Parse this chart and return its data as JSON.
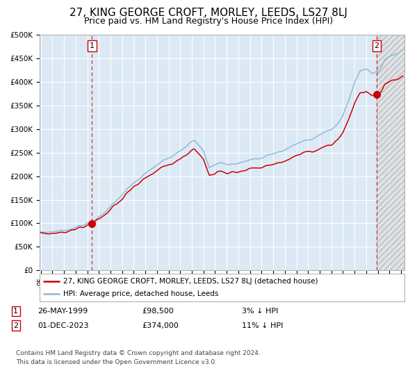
{
  "title": "27, KING GEORGE CROFT, MORLEY, LEEDS, LS27 8LJ",
  "subtitle": "Price paid vs. HM Land Registry's House Price Index (HPI)",
  "title_fontsize": 11,
  "subtitle_fontsize": 9,
  "background_color": "#ffffff",
  "plot_bg_color": "#dce9f5",
  "hpi_color": "#89b8d8",
  "price_color": "#cc0000",
  "ylim": [
    0,
    500000
  ],
  "yticks": [
    0,
    50000,
    100000,
    150000,
    200000,
    250000,
    300000,
    350000,
    400000,
    450000,
    500000
  ],
  "ytick_labels": [
    "£0",
    "£50K",
    "£100K",
    "£150K",
    "£200K",
    "£250K",
    "£300K",
    "£350K",
    "£400K",
    "£450K",
    "£500K"
  ],
  "sale1_date": 1999.4,
  "sale1_price": 98500,
  "sale1_label": "1",
  "sale2_date": 2023.917,
  "sale2_price": 374000,
  "sale2_label": "2",
  "legend_line1": "27, KING GEORGE CROFT, MORLEY, LEEDS, LS27 8LJ (detached house)",
  "legend_line2": "HPI: Average price, detached house, Leeds",
  "annotation1_date": "26-MAY-1999",
  "annotation1_price": "£98,500",
  "annotation1_pct": "3% ↓ HPI",
  "annotation2_date": "01-DEC-2023",
  "annotation2_price": "£374,000",
  "annotation2_pct": "11% ↓ HPI",
  "footer": "Contains HM Land Registry data © Crown copyright and database right 2024.\nThis data is licensed under the Open Government Licence v3.0.",
  "xstart": 1994.9,
  "xend": 2026.3
}
